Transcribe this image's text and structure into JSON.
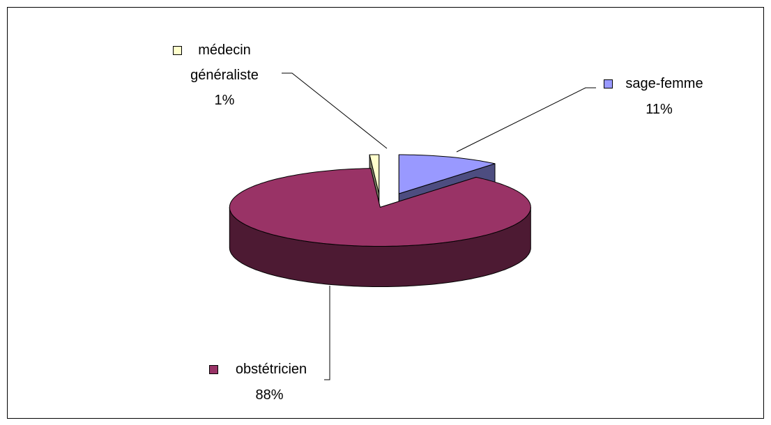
{
  "chart_data": {
    "type": "pie3d",
    "categories": [
      "sage-femme",
      "obstétricien",
      "médecin généraliste"
    ],
    "values": [
      11,
      88,
      1
    ],
    "value_labels": [
      "11%",
      "88%",
      "1%"
    ],
    "colors": [
      "#9999ff",
      "#993366",
      "#ffffcc"
    ],
    "side_colors": [
      "#4d4d80",
      "#4d1a33",
      "#808066"
    ]
  }
}
